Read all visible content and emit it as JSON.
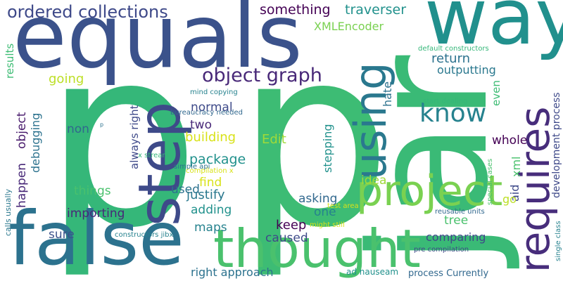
{
  "words": [
    "p",
    "p",
    "equals",
    "way",
    "jar",
    "false",
    "thought",
    "step",
    "using",
    "requires",
    "project",
    "ordered collections",
    "object graph",
    "know",
    "something",
    "traverser",
    "XMLEncoder",
    "return",
    "outputting",
    "default constructors",
    "results",
    "calls usually",
    "going",
    "debugging",
    "object",
    "happen",
    "non",
    "normal",
    "two",
    "building",
    "package",
    "always right",
    "Edit",
    "mind copying",
    "bureaucracy needed",
    "p",
    "x stream",
    "simple api",
    "compilation x",
    "things",
    "used",
    "find",
    "justify",
    "adding",
    "importing",
    "maps",
    "sure",
    "constructors jibx",
    "keep",
    "caused",
    "one",
    "asking",
    "idea",
    "stepping",
    "hate",
    "even",
    "start dealing",
    "whole",
    "xml",
    "aid",
    "go",
    "development process",
    "special cases",
    "reusable units",
    "single class",
    "tree",
    "comparing",
    "pre compilation",
    "process Currently",
    "ad nauseam",
    "right approach",
    "test area",
    "might still"
  ]
}
